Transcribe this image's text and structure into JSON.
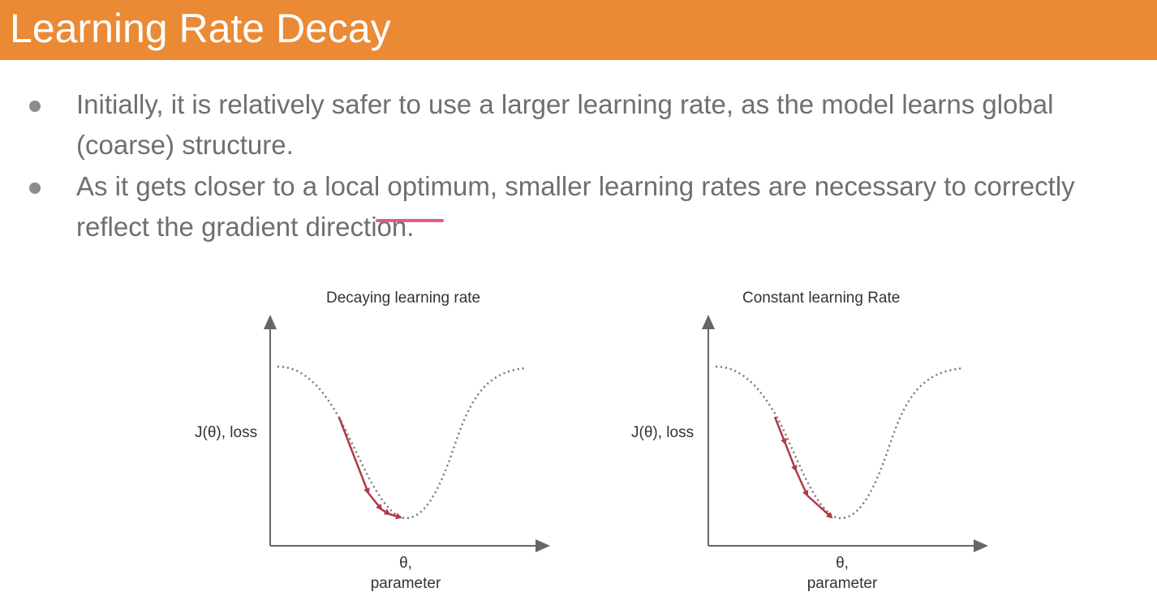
{
  "header": {
    "title": "Learning Rate Decay"
  },
  "bullets": [
    "Initially, it is relatively safer to use a larger learning rate, as the model learns global (coarse) structure.",
    "As it gets closer to a local optimum, smaller learning rates are necessary to correctly reflect the gradient direction."
  ],
  "colors": {
    "header_bg": "#ea8a35",
    "header_text": "#ffffff",
    "bullet_text": "#6f6f6f",
    "step_arrows": "#b03a48",
    "curve": "#777777",
    "axes": "#666666",
    "pen_mark": "#e04a78"
  },
  "diagrams": [
    {
      "title": "Decaying learning rate",
      "ylabel": "J(θ), loss",
      "xlabel_line1": "θ,",
      "xlabel_line2": "parameter",
      "step_pattern": "decaying"
    },
    {
      "title": "Constant learning Rate",
      "ylabel": "J(θ), loss",
      "xlabel_line1": "θ,",
      "xlabel_line2": "parameter",
      "step_pattern": "constant"
    }
  ]
}
